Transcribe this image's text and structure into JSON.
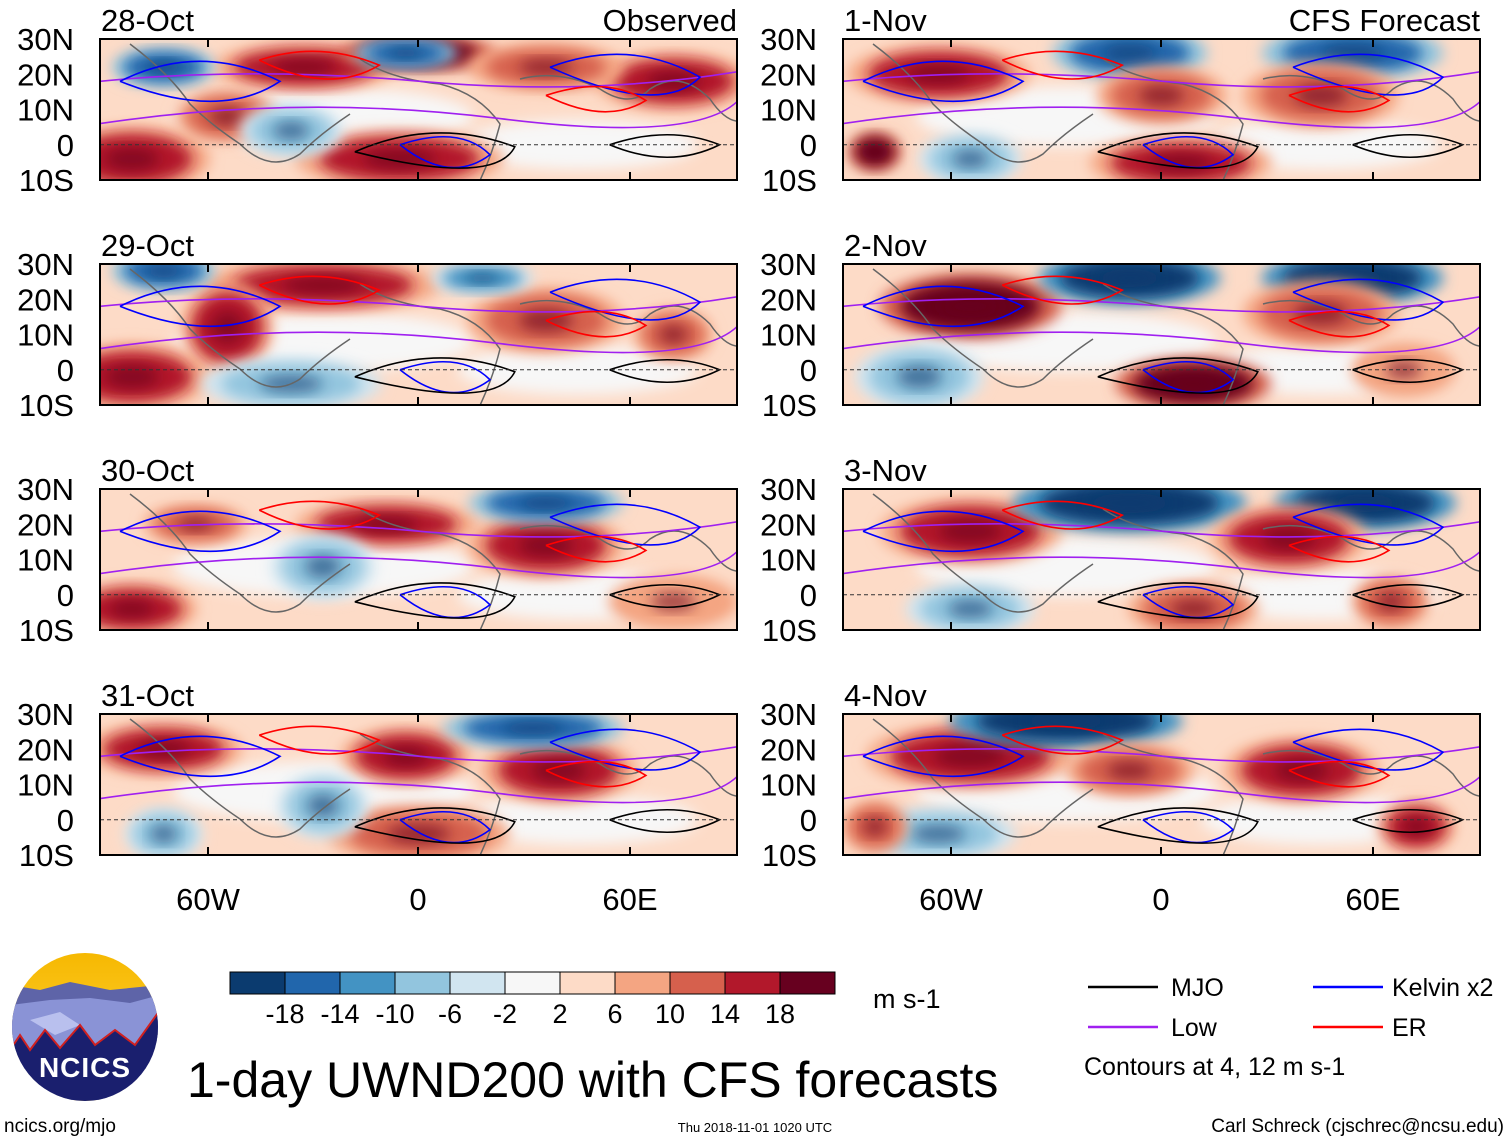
{
  "title": "1-day UWND200 with CFS forecasts",
  "columns": {
    "observed": "Observed",
    "forecast": "CFS Forecast"
  },
  "panels": [
    {
      "date": "28-Oct",
      "column": "observed"
    },
    {
      "date": "29-Oct",
      "column": "observed"
    },
    {
      "date": "30-Oct",
      "column": "observed"
    },
    {
      "date": "31-Oct",
      "column": "observed"
    },
    {
      "date": "1-Nov",
      "column": "forecast"
    },
    {
      "date": "2-Nov",
      "column": "forecast"
    },
    {
      "date": "3-Nov",
      "column": "forecast"
    },
    {
      "date": "4-Nov",
      "column": "forecast"
    }
  ],
  "lat_ticks": [
    "30N",
    "20N",
    "10N",
    "0",
    "10S"
  ],
  "lon_ticks": [
    "60W",
    "0",
    "60E"
  ],
  "colorbar": {
    "labels": [
      "-18",
      "-14",
      "-10",
      "-6",
      "-2",
      "2",
      "6",
      "10",
      "14",
      "18"
    ],
    "colors": [
      "#0b3b6f",
      "#2166ac",
      "#4393c3",
      "#92c5de",
      "#d1e5f0",
      "#f7f7f7",
      "#fddbc7",
      "#f4a582",
      "#d6604d",
      "#b2182b",
      "#67001f"
    ],
    "units": "m s-1"
  },
  "legend": {
    "items": [
      {
        "label": "MJO",
        "color": "#000000"
      },
      {
        "label": "Kelvin x2",
        "color": "#0000ff"
      },
      {
        "label": "Low",
        "color": "#a020f0"
      },
      {
        "label": "ER",
        "color": "#ff0000"
      }
    ],
    "note": "Contours at 4, 12 m s-1"
  },
  "logo": {
    "text": "NCICS"
  },
  "footer": {
    "url": "ncics.org/mjo",
    "timestamp": "Thu 2018-11-01 1020 UTC",
    "credit": "Carl Schreck (cjschrec@ncsu.edu)"
  }
}
